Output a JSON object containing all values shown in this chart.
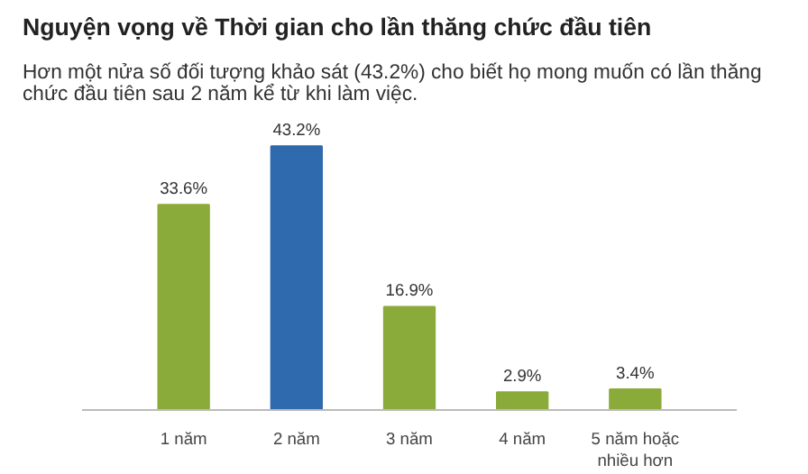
{
  "chart_data": {
    "type": "bar",
    "title": "Nguyện vọng về Thời gian cho lần thăng chức đầu tiên",
    "subtitle": "Hơn một nửa số đối tượng khảo sát (43.2%) cho biết họ mong muốn có lần thăng chức đầu tiên sau 2 năm kể từ khi làm việc.",
    "categories": [
      "1 năm",
      "2 năm",
      "3 năm",
      "4 năm",
      "5 năm hoặc nhiều hơn"
    ],
    "values": [
      33.6,
      43.2,
      16.9,
      2.9,
      3.4
    ],
    "colors": [
      "#8aab3a",
      "#2e6aad",
      "#8aab3a",
      "#8aab3a",
      "#8aab3a"
    ],
    "value_labels": [
      "33.6%",
      "43.2%",
      "16.9%",
      "2.9%",
      "3.4%"
    ],
    "grid": false
  }
}
